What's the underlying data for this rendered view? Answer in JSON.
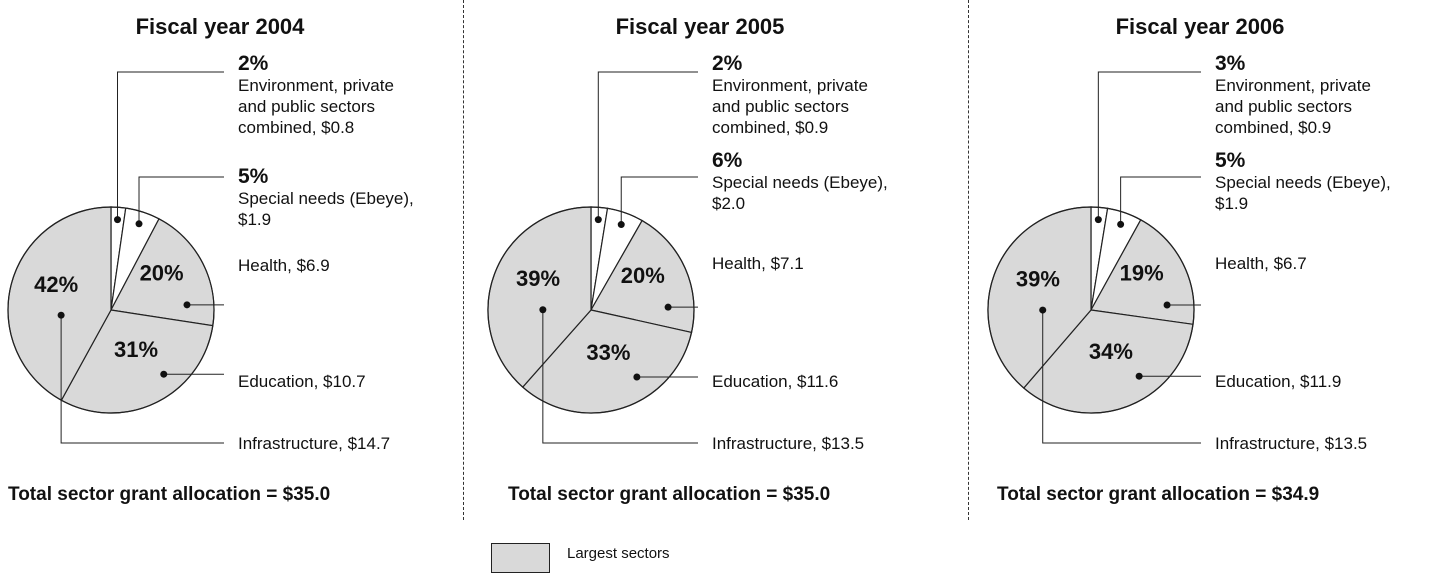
{
  "colors": {
    "largest": "#d9d9d9",
    "other": "#ffffff",
    "stroke": "#222222"
  },
  "legend": {
    "label": "Largest sectors"
  },
  "chart_data": [
    {
      "type": "pie",
      "title": "Fiscal year 2004",
      "total_label": "Total sector grant allocation = $35.0",
      "slices": [
        {
          "pct": "2%",
          "desc": "Environment, private and public sectors combined, $0.8",
          "line1": "Environment, private",
          "line2": "and public sectors",
          "line3": "combined, $0.8",
          "value": 0.8,
          "largest": false
        },
        {
          "pct": "5%",
          "desc": "Special needs (Ebeye), $1.9",
          "line1": "Special needs (Ebeye),",
          "line2": "$1.9",
          "value": 1.9,
          "largest": false
        },
        {
          "pct": "20%",
          "desc": "Health, $6.9",
          "value": 6.9,
          "largest": true
        },
        {
          "pct": "31%",
          "desc": "Education, $10.7",
          "value": 10.7,
          "largest": true
        },
        {
          "pct": "42%",
          "desc": "Infrastructure, $14.7",
          "value": 14.7,
          "largest": true
        }
      ]
    },
    {
      "type": "pie",
      "title": "Fiscal year 2005",
      "total_label": "Total sector grant allocation = $35.0",
      "slices": [
        {
          "pct": "2%",
          "desc": "Environment, private and public sectors combined, $0.9",
          "line1": "Environment, private",
          "line2": "and public sectors",
          "line3": "combined, $0.9",
          "value": 0.9,
          "largest": false
        },
        {
          "pct": "6%",
          "desc": "Special needs (Ebeye), $2.0",
          "line1": "Special needs (Ebeye),",
          "line2": "$2.0",
          "value": 2.0,
          "largest": false
        },
        {
          "pct": "20%",
          "desc": "Health, $7.1",
          "value": 7.1,
          "largest": true
        },
        {
          "pct": "33%",
          "desc": "Education, $11.6",
          "value": 11.6,
          "largest": true
        },
        {
          "pct": "39%",
          "desc": "Infrastructure, $13.5",
          "value": 13.5,
          "largest": true
        }
      ]
    },
    {
      "type": "pie",
      "title": "Fiscal year 2006",
      "total_label": "Total sector grant allocation = $34.9",
      "slices": [
        {
          "pct": "3%",
          "desc": "Environment, private and public sectors combined, $0.9",
          "line1": "Environment, private",
          "line2": "and public sectors",
          "line3": "combined, $0.9",
          "value": 0.9,
          "largest": false
        },
        {
          "pct": "5%",
          "desc": "Special needs (Ebeye), $1.9",
          "line1": "Special needs (Ebeye),",
          "line2": "$1.9",
          "value": 1.9,
          "largest": false
        },
        {
          "pct": "19%",
          "desc": "Health, $6.7",
          "value": 6.7,
          "largest": true
        },
        {
          "pct": "34%",
          "desc": "Education, $11.9",
          "value": 11.9,
          "largest": true
        },
        {
          "pct": "39%",
          "desc": "Infrastructure, $13.5",
          "value": 13.5,
          "largest": true
        }
      ]
    }
  ]
}
